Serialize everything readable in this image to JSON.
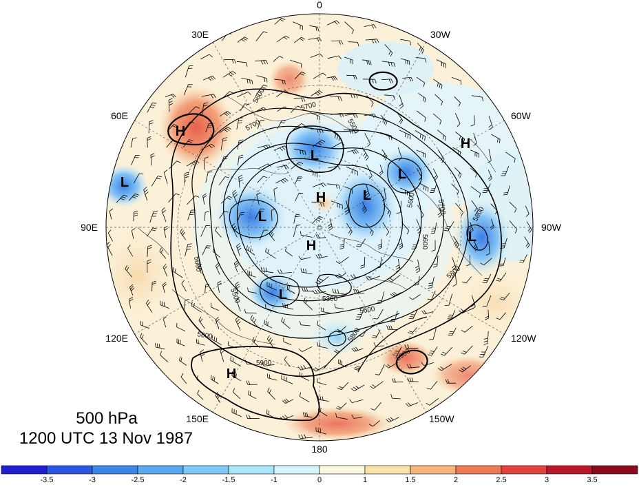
{
  "map": {
    "level_label": "500 hPa",
    "time_label": "1200 UTC 13 Nov 1987",
    "longitude_labels": {
      "top": "0",
      "right_top": "30W",
      "right_upper": "60W",
      "right": "90W",
      "right_lower": "120W",
      "bottom_right": "150W",
      "bottom": "180",
      "bottom_left": "150E",
      "left_lower": "120E",
      "left": "90E",
      "left_upper": "60E",
      "left_top": "30E"
    },
    "pressure_centers": [
      {
        "label": "H"
      },
      {
        "label": "H"
      },
      {
        "label": "H"
      },
      {
        "label": "H"
      },
      {
        "label": "H"
      },
      {
        "label": "L"
      },
      {
        "label": "L"
      },
      {
        "label": "L"
      },
      {
        "label": "L"
      },
      {
        "label": "L"
      },
      {
        "label": "L"
      },
      {
        "label": "L"
      }
    ],
    "contour_labels": [
      "5600",
      "5700",
      "5500",
      "5700",
      "5600",
      "5500",
      "5300",
      "5500",
      "5800",
      "5900",
      "5800",
      "5900",
      "5600",
      "5700",
      "5800",
      "5600",
      "5800"
    ],
    "colorbar": {
      "tick_labels": [
        "-3.5",
        "-3",
        "-2.5",
        "-2",
        "-1.5",
        "-1",
        "0",
        "1",
        "1.5",
        "2",
        "2.5",
        "3",
        "3.5"
      ],
      "colors": [
        "#1f1fd0",
        "#2a56e0",
        "#3c86ea",
        "#5aa9f0",
        "#7ec8f6",
        "#a8e6fb",
        "#d6f4fc",
        "#fdf8df",
        "#fbe3ac",
        "#f7b57c",
        "#ef7a55",
        "#e0443d",
        "#b8182a",
        "#8c0c1e"
      ]
    }
  }
}
